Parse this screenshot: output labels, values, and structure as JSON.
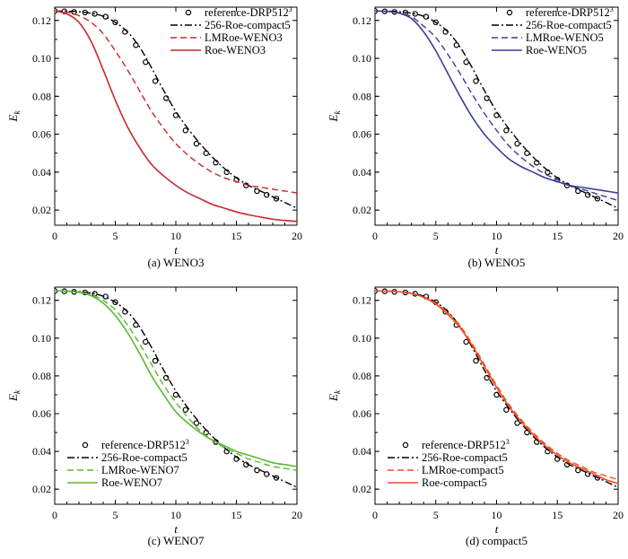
{
  "chart_data": [
    {
      "type": "line",
      "caption": "(a) WENO3",
      "xlabel": "t",
      "ylabel": "E",
      "ylabel_sub": "k",
      "xlim": [
        0,
        20
      ],
      "ylim": [
        0.012,
        0.127
      ],
      "xticks": [
        "0",
        "5",
        "10",
        "15",
        "20"
      ],
      "xtick_values": [
        0,
        5,
        10,
        15,
        20
      ],
      "yticks": [
        "0.02",
        "0.04",
        "0.06",
        "0.08",
        "0.10",
        "0.12"
      ],
      "ytick_values": [
        0.02,
        0.04,
        0.06,
        0.08,
        0.1,
        0.12
      ],
      "legend_position": "top-right",
      "series": [
        {
          "name": "reference-DRP512",
          "name_sup": "3",
          "style": "circles",
          "color": "#000000",
          "x": [
            0,
            0.8,
            1.6,
            2.5,
            3.3,
            4.2,
            5,
            5.8,
            6.7,
            7.5,
            8.3,
            9.2,
            10,
            10.8,
            11.7,
            12.5,
            13.3,
            14.2,
            15,
            15.8,
            16.7,
            17.5,
            18.3
          ],
          "y": [
            0.125,
            0.1248,
            0.1245,
            0.1242,
            0.1235,
            0.122,
            0.119,
            0.114,
            0.107,
            0.098,
            0.088,
            0.079,
            0.07,
            0.062,
            0.055,
            0.05,
            0.045,
            0.04,
            0.036,
            0.033,
            0.03,
            0.028,
            0.026
          ]
        },
        {
          "name": "256-Roe-compact5",
          "style": "dashdot",
          "color": "#000000",
          "x": [
            0,
            1,
            2,
            3,
            4,
            5,
            6,
            7,
            8,
            9,
            10,
            11,
            12,
            13,
            14,
            15,
            16,
            17,
            18,
            19,
            20
          ],
          "y": [
            0.125,
            0.1249,
            0.1246,
            0.1238,
            0.1222,
            0.119,
            0.114,
            0.106,
            0.095,
            0.083,
            0.072,
            0.063,
            0.055,
            0.048,
            0.042,
            0.037,
            0.033,
            0.03,
            0.027,
            0.024,
            0.021
          ]
        },
        {
          "name": "LMRoe-WENO3",
          "style": "dashed",
          "color": "#c8282d",
          "x": [
            0,
            1,
            2,
            3,
            4,
            5,
            6,
            7,
            8,
            9,
            10,
            11,
            12,
            13,
            14,
            15,
            16,
            17,
            18,
            19,
            20
          ],
          "y": [
            0.125,
            0.1245,
            0.1225,
            0.119,
            0.113,
            0.104,
            0.094,
            0.083,
            0.072,
            0.063,
            0.055,
            0.049,
            0.044,
            0.04,
            0.037,
            0.035,
            0.033,
            0.032,
            0.031,
            0.03,
            0.029
          ]
        },
        {
          "name": "Roe-WENO3",
          "style": "solid",
          "color": "#c8282d",
          "x": [
            0,
            1,
            2,
            3,
            4,
            5,
            6,
            7,
            8,
            9,
            10,
            11,
            12,
            13,
            14,
            15,
            16,
            17,
            18,
            19,
            20
          ],
          "y": [
            0.125,
            0.1235,
            0.119,
            0.109,
            0.094,
            0.078,
            0.064,
            0.053,
            0.044,
            0.038,
            0.033,
            0.029,
            0.026,
            0.023,
            0.021,
            0.019,
            0.0175,
            0.0163,
            0.0152,
            0.0145,
            0.014
          ]
        }
      ]
    },
    {
      "type": "line",
      "caption": "(b) WENO5",
      "xlabel": "t",
      "ylabel": "E",
      "ylabel_sub": "k",
      "xlim": [
        0,
        20
      ],
      "ylim": [
        0.012,
        0.127
      ],
      "xticks": [
        "0",
        "5",
        "10",
        "15",
        "20"
      ],
      "xtick_values": [
        0,
        5,
        10,
        15,
        20
      ],
      "yticks": [
        "0.02",
        "0.04",
        "0.06",
        "0.08",
        "0.10",
        "0.12"
      ],
      "ytick_values": [
        0.02,
        0.04,
        0.06,
        0.08,
        0.1,
        0.12
      ],
      "legend_position": "top-right",
      "series": [
        {
          "name": "reference-DRP512",
          "name_sup": "3",
          "style": "circles",
          "color": "#000000",
          "x": [
            0,
            0.8,
            1.6,
            2.5,
            3.3,
            4.2,
            5,
            5.8,
            6.7,
            7.5,
            8.3,
            9.2,
            10,
            10.8,
            11.7,
            12.5,
            13.3,
            14.2,
            15,
            15.8,
            16.7,
            17.5,
            18.3
          ],
          "y": [
            0.125,
            0.1248,
            0.1245,
            0.1242,
            0.1235,
            0.122,
            0.119,
            0.114,
            0.107,
            0.098,
            0.088,
            0.079,
            0.07,
            0.062,
            0.055,
            0.05,
            0.045,
            0.04,
            0.036,
            0.033,
            0.03,
            0.028,
            0.026
          ]
        },
        {
          "name": "256-Roe-compact5",
          "style": "dashdot",
          "color": "#000000",
          "x": [
            0,
            1,
            2,
            3,
            4,
            5,
            6,
            7,
            8,
            9,
            10,
            11,
            12,
            13,
            14,
            15,
            16,
            17,
            18,
            19,
            20
          ],
          "y": [
            0.125,
            0.1249,
            0.1246,
            0.1238,
            0.1222,
            0.119,
            0.114,
            0.106,
            0.095,
            0.083,
            0.072,
            0.063,
            0.055,
            0.048,
            0.042,
            0.037,
            0.033,
            0.03,
            0.027,
            0.024,
            0.021
          ]
        },
        {
          "name": "LMRoe-WENO5",
          "style": "dashed",
          "color": "#3a3f99",
          "x": [
            0,
            1,
            2,
            3,
            4,
            5,
            6,
            7,
            8,
            9,
            10,
            11,
            12,
            13,
            14,
            15,
            16,
            17,
            18,
            19,
            20
          ],
          "y": [
            0.125,
            0.1248,
            0.124,
            0.122,
            0.117,
            0.111,
            0.102,
            0.092,
            0.081,
            0.071,
            0.062,
            0.054,
            0.048,
            0.043,
            0.039,
            0.036,
            0.033,
            0.031,
            0.029,
            0.027,
            0.025
          ]
        },
        {
          "name": "Roe-WENO5",
          "style": "solid",
          "color": "#3a3f99",
          "x": [
            0,
            1,
            2,
            3,
            4,
            5,
            6,
            7,
            8,
            9,
            10,
            11,
            12,
            13,
            14,
            15,
            16,
            17,
            18,
            19,
            20
          ],
          "y": [
            0.125,
            0.1248,
            0.1238,
            0.121,
            0.114,
            0.104,
            0.092,
            0.08,
            0.069,
            0.06,
            0.053,
            0.047,
            0.043,
            0.04,
            0.037,
            0.035,
            0.033,
            0.032,
            0.031,
            0.03,
            0.029
          ]
        }
      ]
    },
    {
      "type": "line",
      "caption": "(c) WENO7",
      "xlabel": "t",
      "ylabel": "E",
      "ylabel_sub": "k",
      "xlim": [
        0,
        20
      ],
      "ylim": [
        0.012,
        0.127
      ],
      "xticks": [
        "0",
        "5",
        "10",
        "15",
        "20"
      ],
      "xtick_values": [
        0,
        5,
        10,
        15,
        20
      ],
      "yticks": [
        "0.02",
        "0.04",
        "0.06",
        "0.08",
        "0.10",
        "0.12"
      ],
      "ytick_values": [
        0.02,
        0.04,
        0.06,
        0.08,
        0.1,
        0.12
      ],
      "legend_position": "bottom-left",
      "series": [
        {
          "name": "reference-DRP512",
          "name_sup": "3",
          "style": "circles",
          "color": "#000000",
          "x": [
            0,
            0.8,
            1.6,
            2.5,
            3.3,
            4.2,
            5,
            5.8,
            6.7,
            7.5,
            8.3,
            9.2,
            10,
            10.8,
            11.7,
            12.5,
            13.3,
            14.2,
            15,
            15.8,
            16.7,
            17.5,
            18.3
          ],
          "y": [
            0.125,
            0.1248,
            0.1245,
            0.1242,
            0.1235,
            0.122,
            0.119,
            0.114,
            0.107,
            0.098,
            0.088,
            0.079,
            0.07,
            0.062,
            0.055,
            0.05,
            0.045,
            0.04,
            0.036,
            0.033,
            0.03,
            0.028,
            0.026
          ]
        },
        {
          "name": "256-Roe-compact5",
          "style": "dashdot",
          "color": "#000000",
          "x": [
            0,
            1,
            2,
            3,
            4,
            5,
            6,
            7,
            8,
            9,
            10,
            11,
            12,
            13,
            14,
            15,
            16,
            17,
            18,
            19,
            20
          ],
          "y": [
            0.125,
            0.1249,
            0.1246,
            0.1238,
            0.1222,
            0.119,
            0.114,
            0.106,
            0.095,
            0.083,
            0.072,
            0.063,
            0.055,
            0.048,
            0.042,
            0.037,
            0.033,
            0.03,
            0.027,
            0.024,
            0.021
          ]
        },
        {
          "name": "LMRoe-WENO7",
          "style": "dashed",
          "color": "#5bb832",
          "x": [
            0,
            1,
            2,
            3,
            4,
            5,
            6,
            7,
            8,
            9,
            10,
            11,
            12,
            13,
            14,
            15,
            16,
            17,
            18,
            19,
            20
          ],
          "y": [
            0.125,
            0.1249,
            0.1244,
            0.123,
            0.12,
            0.115,
            0.107,
            0.097,
            0.086,
            0.075,
            0.066,
            0.058,
            0.051,
            0.046,
            0.042,
            0.039,
            0.036,
            0.034,
            0.032,
            0.031,
            0.03
          ]
        },
        {
          "name": "Roe-WENO7",
          "style": "solid",
          "color": "#5bb832",
          "x": [
            0,
            1,
            2,
            3,
            4,
            5,
            6,
            7,
            8,
            9,
            10,
            11,
            12,
            13,
            14,
            15,
            16,
            17,
            18,
            19,
            20
          ],
          "y": [
            0.125,
            0.1249,
            0.1242,
            0.1225,
            0.1185,
            0.112,
            0.103,
            0.092,
            0.08,
            0.07,
            0.061,
            0.055,
            0.05,
            0.046,
            0.043,
            0.04,
            0.038,
            0.036,
            0.034,
            0.033,
            0.032
          ]
        }
      ]
    },
    {
      "type": "line",
      "caption": "(d) compact5",
      "xlabel": "t",
      "ylabel": "E",
      "ylabel_sub": "k",
      "xlim": [
        0,
        20
      ],
      "ylim": [
        0.012,
        0.127
      ],
      "xticks": [
        "0",
        "5",
        "10",
        "15",
        "20"
      ],
      "xtick_values": [
        0,
        5,
        10,
        15,
        20
      ],
      "yticks": [
        "0.02",
        "0.04",
        "0.06",
        "0.08",
        "0.10",
        "0.12"
      ],
      "ytick_values": [
        0.02,
        0.04,
        0.06,
        0.08,
        0.1,
        0.12
      ],
      "legend_position": "bottom-left",
      "series": [
        {
          "name": "reference-DRP512",
          "name_sup": "3",
          "style": "circles",
          "color": "#000000",
          "x": [
            0,
            0.8,
            1.6,
            2.5,
            3.3,
            4.2,
            5,
            5.8,
            6.7,
            7.5,
            8.3,
            9.2,
            10,
            10.8,
            11.7,
            12.5,
            13.3,
            14.2,
            15,
            15.8,
            16.7,
            17.5,
            18.3
          ],
          "y": [
            0.125,
            0.1248,
            0.1245,
            0.1242,
            0.1235,
            0.122,
            0.119,
            0.114,
            0.107,
            0.098,
            0.088,
            0.079,
            0.07,
            0.062,
            0.055,
            0.05,
            0.045,
            0.04,
            0.036,
            0.033,
            0.03,
            0.028,
            0.026
          ]
        },
        {
          "name": "256-Roe-compact5",
          "style": "dashdot",
          "color": "#000000",
          "x": [
            0,
            1,
            2,
            3,
            4,
            5,
            6,
            7,
            8,
            9,
            10,
            11,
            12,
            13,
            14,
            15,
            16,
            17,
            18,
            19,
            20
          ],
          "y": [
            0.125,
            0.1249,
            0.1246,
            0.1238,
            0.1222,
            0.119,
            0.114,
            0.106,
            0.095,
            0.083,
            0.072,
            0.063,
            0.055,
            0.048,
            0.042,
            0.037,
            0.033,
            0.03,
            0.027,
            0.024,
            0.021
          ]
        },
        {
          "name": "LMRoe-compact5",
          "style": "dashed",
          "color": "#f04e23",
          "x": [
            0,
            1,
            2,
            3,
            4,
            5,
            6,
            7,
            8,
            9,
            10,
            11,
            12,
            13,
            14,
            15,
            16,
            17,
            18,
            19,
            20
          ],
          "y": [
            0.125,
            0.1249,
            0.1245,
            0.1236,
            0.1218,
            0.1185,
            0.1135,
            0.1065,
            0.097,
            0.086,
            0.075,
            0.065,
            0.057,
            0.05,
            0.044,
            0.039,
            0.035,
            0.032,
            0.029,
            0.027,
            0.025
          ]
        },
        {
          "name": "Roe-compact5",
          "style": "solid",
          "color": "#f04e23",
          "x": [
            0,
            1,
            2,
            3,
            4,
            5,
            6,
            7,
            8,
            9,
            10,
            11,
            12,
            13,
            14,
            15,
            16,
            17,
            18,
            19,
            20
          ],
          "y": [
            0.125,
            0.1249,
            0.1245,
            0.1236,
            0.1216,
            0.118,
            0.1125,
            0.1055,
            0.096,
            0.085,
            0.074,
            0.064,
            0.056,
            0.049,
            0.043,
            0.038,
            0.034,
            0.031,
            0.028,
            0.025,
            0.023
          ]
        }
      ]
    }
  ]
}
